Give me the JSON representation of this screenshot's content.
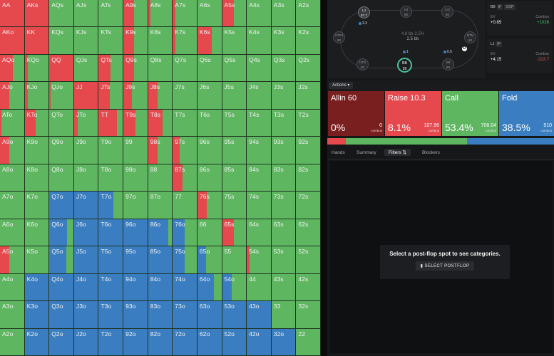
{
  "colors": {
    "allin": "#7a1f1f",
    "raise": "#e5484d",
    "call": "#5fb661",
    "fold": "#3a7ec1"
  },
  "grid": {
    "hands": [
      [
        "AA",
        "AKs",
        "AQs",
        "AJs",
        "ATs",
        "A9s",
        "A8s",
        "A7s",
        "A6s",
        "A5s",
        "A4s",
        "A3s",
        "A2s"
      ],
      [
        "AKo",
        "KK",
        "KQs",
        "KJs",
        "KTs",
        "K9s",
        "K8s",
        "K7s",
        "K6s",
        "K5s",
        "K4s",
        "K3s",
        "K2s"
      ],
      [
        "AQo",
        "KQo",
        "QQ",
        "QJs",
        "QTs",
        "Q9s",
        "Q8s",
        "Q7s",
        "Q6s",
        "Q5s",
        "Q4s",
        "Q3s",
        "Q2s"
      ],
      [
        "AJo",
        "KJo",
        "QJo",
        "JJ",
        "JTs",
        "J9s",
        "J8s",
        "J7s",
        "J6s",
        "J5s",
        "J4s",
        "J3s",
        "J2s"
      ],
      [
        "ATo",
        "KTo",
        "QTo",
        "JTo",
        "TT",
        "T9s",
        "T8s",
        "T7s",
        "T6s",
        "T5s",
        "T4s",
        "T3s",
        "T2s"
      ],
      [
        "A9o",
        "K9o",
        "Q9o",
        "J9o",
        "T9o",
        "99",
        "98s",
        "97s",
        "96s",
        "95s",
        "94s",
        "93s",
        "92s"
      ],
      [
        "A8o",
        "K8o",
        "Q8o",
        "J8o",
        "T8o",
        "98o",
        "88",
        "87s",
        "86s",
        "85s",
        "84s",
        "83s",
        "82s"
      ],
      [
        "A7o",
        "K7o",
        "Q7o",
        "J7o",
        "T7o",
        "97o",
        "87o",
        "77",
        "76s",
        "75s",
        "74s",
        "73s",
        "72s"
      ],
      [
        "A6o",
        "K6o",
        "Q6o",
        "J6o",
        "T6o",
        "96o",
        "86o",
        "76o",
        "66",
        "65s",
        "64s",
        "63s",
        "62s"
      ],
      [
        "A5o",
        "K5o",
        "Q5o",
        "J5o",
        "T5o",
        "95o",
        "85o",
        "75o",
        "65o",
        "55",
        "54s",
        "53s",
        "52s"
      ],
      [
        "A4o",
        "K4o",
        "Q4o",
        "J4o",
        "T4o",
        "94o",
        "84o",
        "74o",
        "64o",
        "54o",
        "44",
        "43s",
        "42s"
      ],
      [
        "A3o",
        "K3o",
        "Q3o",
        "J3o",
        "T3o",
        "93o",
        "83o",
        "73o",
        "63o",
        "53o",
        "43o",
        "33",
        "32s"
      ],
      [
        "A2o",
        "K2o",
        "Q2o",
        "J2o",
        "T2o",
        "92o",
        "82o",
        "72o",
        "62o",
        "52o",
        "42o",
        "32o",
        "22"
      ]
    ],
    "strategy": {
      "AA": [
        [
          "raise",
          1
        ]
      ],
      "AKs": [
        [
          "raise",
          1
        ]
      ],
      "A9s": [
        [
          "raise",
          0.45
        ]
      ],
      "A8s": [
        [
          "raise",
          0.1
        ]
      ],
      "A7s": [
        [
          "raise",
          0.1
        ]
      ],
      "A5s": [
        [
          "raise",
          0.5
        ]
      ],
      "K9s": [
        [
          "raise",
          0.45
        ]
      ],
      "K7s": [
        [
          "raise",
          0.1
        ]
      ],
      "K6s": [
        [
          "raise",
          0.6
        ]
      ],
      "Q9s": [
        [
          "raise",
          0.45
        ]
      ],
      "QTs": [
        [
          "raise",
          0.5
        ]
      ],
      "J9s": [
        [
          "raise",
          0.35
        ]
      ],
      "J8s": [
        [
          "raise",
          0.4
        ]
      ],
      "JTs": [
        [
          "raise",
          0.45
        ]
      ],
      "T9s": [
        [
          "raise",
          0.5
        ]
      ],
      "T8s": [
        [
          "raise",
          0.6
        ]
      ],
      "98s": [
        [
          "raise",
          0.4
        ]
      ],
      "97s": [
        [
          "raise",
          0.3
        ]
      ],
      "87s": [
        [
          "raise",
          0.4
        ]
      ],
      "76s": [
        [
          "raise",
          0.4
        ]
      ],
      "65s": [
        [
          "raise",
          0.5
        ]
      ],
      "54s": [
        [
          "raise",
          0.1
        ]
      ],
      "AKo": [
        [
          "raise",
          1
        ]
      ],
      "KK": [
        [
          "raise",
          1
        ]
      ],
      "QQ": [
        [
          "raise",
          1
        ]
      ],
      "JJ": [
        [
          "raise",
          1
        ]
      ],
      "TT": [
        [
          "raise",
          0.75
        ]
      ],
      "AQo": [
        [
          "raise",
          0.55
        ]
      ],
      "KQo": [
        [
          "raise",
          0.12
        ]
      ],
      "AJo": [
        [
          "raise",
          0.4
        ]
      ],
      "KJo": [
        [
          "raise",
          0.12
        ]
      ],
      "QJo": [
        [
          "raise",
          0.05
        ]
      ],
      "ATo": [
        [
          "raise",
          0.05
        ]
      ],
      "KTo": [
        [
          "raise",
          0.45
        ]
      ],
      "JTo": [
        [
          "raise",
          0.15
        ]
      ],
      "A9o": [
        [
          "raise",
          0.4
        ]
      ],
      "A5o": [
        [
          "raise",
          0.4
        ]
      ],
      "Q7o": [
        [
          "fold",
          1
        ]
      ],
      "J7o": [
        [
          "fold",
          1
        ]
      ],
      "T7o": [
        [
          "fold",
          0.6
        ]
      ],
      "Q6o": [
        [
          "fold",
          0.75
        ]
      ],
      "J6o": [
        [
          "fold",
          1
        ]
      ],
      "T6o": [
        [
          "fold",
          1
        ]
      ],
      "96o": [
        [
          "fold",
          1
        ]
      ],
      "86o": [
        [
          "fold",
          0.85
        ]
      ],
      "76o": [
        [
          "fold",
          0.5
        ]
      ],
      "Q5o": [
        [
          "fold",
          0.7
        ]
      ],
      "J5o": [
        [
          "fold",
          1
        ]
      ],
      "T5o": [
        [
          "fold",
          1
        ]
      ],
      "95o": [
        [
          "fold",
          1
        ]
      ],
      "85o": [
        [
          "fold",
          1
        ]
      ],
      "75o": [
        [
          "fold",
          0.5
        ]
      ],
      "65o": [
        [
          "fold",
          0.35
        ]
      ],
      "K4o": [
        [
          "fold",
          1
        ]
      ],
      "Q4o": [
        [
          "fold",
          1
        ]
      ],
      "J4o": [
        [
          "fold",
          1
        ]
      ],
      "T4o": [
        [
          "fold",
          1
        ]
      ],
      "94o": [
        [
          "fold",
          1
        ]
      ],
      "84o": [
        [
          "fold",
          1
        ]
      ],
      "74o": [
        [
          "fold",
          1
        ]
      ],
      "64o": [
        [
          "fold",
          0.7
        ]
      ],
      "54o": [
        [
          "fold",
          0.4
        ]
      ],
      "K3o": [
        [
          "fold",
          1
        ]
      ],
      "Q3o": [
        [
          "fold",
          1
        ]
      ],
      "J3o": [
        [
          "fold",
          1
        ]
      ],
      "T3o": [
        [
          "fold",
          1
        ]
      ],
      "93o": [
        [
          "fold",
          1
        ]
      ],
      "83o": [
        [
          "fold",
          1
        ]
      ],
      "73o": [
        [
          "fold",
          1
        ]
      ],
      "63o": [
        [
          "fold",
          1
        ]
      ],
      "53o": [
        [
          "fold",
          1
        ]
      ],
      "43o": [
        [
          "fold",
          1
        ]
      ],
      "K2o": [
        [
          "fold",
          1
        ]
      ],
      "Q2o": [
        [
          "fold",
          1
        ]
      ],
      "J2o": [
        [
          "fold",
          1
        ]
      ],
      "T2o": [
        [
          "fold",
          1
        ]
      ],
      "92o": [
        [
          "fold",
          1
        ]
      ],
      "82o": [
        [
          "fold",
          1
        ]
      ],
      "72o": [
        [
          "fold",
          1
        ]
      ],
      "62o": [
        [
          "fold",
          1
        ]
      ],
      "52o": [
        [
          "fold",
          1
        ]
      ],
      "42o": [
        [
          "fold",
          1
        ]
      ],
      "32o": [
        [
          "fold",
          1
        ]
      ]
    }
  },
  "table": {
    "seats": {
      "lj": "LJ\n57.7",
      "hj": "HJ\n60",
      "co": "CO\n60",
      "btn": "BTN\n60",
      "sb": "SB\n60",
      "bb": "BB\n59",
      "utg": "UTG\n60",
      "utg1": "UTG1\n60"
    },
    "pot_bb": "4.8 bb",
    "pot_pct": "2.5%",
    "pot_sub": "2.5 bb",
    "chips": {
      "lj": "3.3",
      "bb": "1",
      "sb": "0.5"
    },
    "dealer": "D"
  },
  "player_boxes": [
    {
      "pos": "BB",
      "tag1": "IP",
      "tag2": "OOP",
      "ev_label": "EV",
      "combos_label": "Combos",
      "ev": "+0.85",
      "combos": "+1028"
    },
    {
      "pos": "LJ",
      "tag1": "IP",
      "ev_label": "EV",
      "combos_label": "Combos",
      "ev": "+4.15",
      "combos": "-313.7"
    }
  ],
  "actions_label": "Actions",
  "actions": [
    {
      "name": "Allin 60",
      "pct": "0%",
      "combos": "0",
      "combos_label": "combos"
    },
    {
      "name": "Raise 10.3",
      "pct": "8.1%",
      "combos": "107.96",
      "combos_label": "combos"
    },
    {
      "name": "Call",
      "pct": "53.4%",
      "combos": "708.04",
      "combos_label": "combos"
    },
    {
      "name": "Fold",
      "pct": "38.5%",
      "combos": "510",
      "combos_label": "combos"
    }
  ],
  "action_split": [
    0.0,
    0.081,
    0.534,
    0.385
  ],
  "tabs": [
    "Hands",
    "Summary",
    "Filters",
    "Blockers"
  ],
  "notice": {
    "title": "Select a post-flop spot to see categories.",
    "button": "SELECT POSTFLOP"
  }
}
